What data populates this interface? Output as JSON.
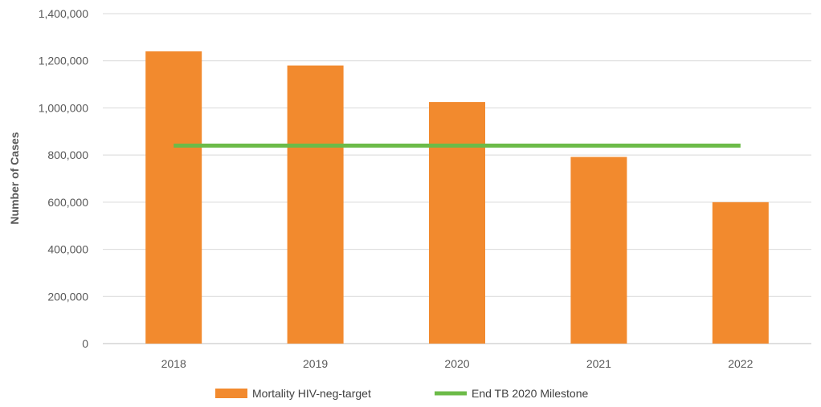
{
  "chart_data": {
    "type": "bar",
    "categories": [
      "2018",
      "2019",
      "2020",
      "2021",
      "2022"
    ],
    "series": [
      {
        "name": "Mortality HIV-neg-target",
        "type": "bar",
        "color": "#F28A2E",
        "values": [
          1240000,
          1180000,
          1025000,
          792000,
          600000
        ]
      },
      {
        "name": "End TB 2020 Milestone",
        "type": "line",
        "color": "#6CBB48",
        "values": [
          840000,
          840000,
          840000,
          840000,
          840000
        ]
      }
    ],
    "title": "",
    "xlabel": "",
    "ylabel": "Number of Cases",
    "ylim": [
      0,
      1400000
    ],
    "yticks": [
      "0",
      "200,000",
      "400,000",
      "600,000",
      "800,000",
      "1,000,000",
      "1,200,000",
      "1,400,000"
    ],
    "grid": true,
    "legend_position": "bottom"
  }
}
